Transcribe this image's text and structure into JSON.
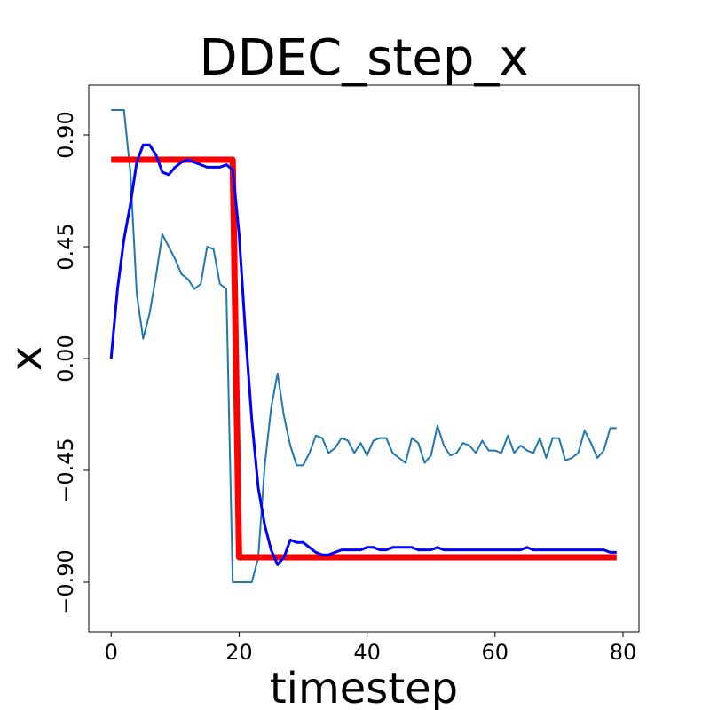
{
  "chart_data": {
    "type": "line",
    "title": "DDEC_step_x",
    "xlabel": "timestep",
    "ylabel": "x",
    "xlim": [
      -3.5,
      82.5
    ],
    "ylim": [
      -1.1,
      1.1
    ],
    "xticks": [
      0,
      20,
      40,
      60,
      80
    ],
    "yticks": [
      0.9,
      0.45,
      0.0,
      -0.45,
      -0.9
    ],
    "ytick_labels": [
      "0.90",
      "0.45",
      "0.00",
      "−0.45",
      "−0.90"
    ],
    "grid": false,
    "legend": "none",
    "series": [
      {
        "color": "#1f77b4",
        "width": 2,
        "points": [
          [
            0,
            1.0
          ],
          [
            1,
            1.0
          ],
          [
            2,
            1.0
          ],
          [
            3,
            0.75
          ],
          [
            4,
            0.26
          ],
          [
            5,
            0.08
          ],
          [
            6,
            0.18
          ],
          [
            7,
            0.33
          ],
          [
            8,
            0.5
          ],
          [
            9,
            0.45
          ],
          [
            10,
            0.4
          ],
          [
            11,
            0.34
          ],
          [
            12,
            0.32
          ],
          [
            13,
            0.28
          ],
          [
            14,
            0.3
          ],
          [
            15,
            0.45
          ],
          [
            16,
            0.44
          ],
          [
            17,
            0.3
          ],
          [
            18,
            0.28
          ],
          [
            19,
            -0.9
          ],
          [
            20,
            -0.9
          ],
          [
            21,
            -0.9
          ],
          [
            22,
            -0.9
          ],
          [
            23,
            -0.8
          ],
          [
            24,
            -0.43
          ],
          [
            25,
            -0.2
          ],
          [
            26,
            -0.06
          ],
          [
            27,
            -0.23
          ],
          [
            28,
            -0.35
          ],
          [
            29,
            -0.43
          ],
          [
            30,
            -0.43
          ],
          [
            31,
            -0.38
          ],
          [
            32,
            -0.31
          ],
          [
            33,
            -0.32
          ],
          [
            34,
            -0.38
          ],
          [
            35,
            -0.36
          ],
          [
            36,
            -0.32
          ],
          [
            37,
            -0.33
          ],
          [
            38,
            -0.38
          ],
          [
            39,
            -0.34
          ],
          [
            40,
            -0.39
          ],
          [
            41,
            -0.33
          ],
          [
            42,
            -0.32
          ],
          [
            43,
            -0.32
          ],
          [
            44,
            -0.38
          ],
          [
            45,
            -0.4
          ],
          [
            46,
            -0.42
          ],
          [
            47,
            -0.32
          ],
          [
            48,
            -0.34
          ],
          [
            49,
            -0.42
          ],
          [
            50,
            -0.39
          ],
          [
            51,
            -0.27
          ],
          [
            52,
            -0.35
          ],
          [
            53,
            -0.39
          ],
          [
            54,
            -0.38
          ],
          [
            55,
            -0.34
          ],
          [
            56,
            -0.35
          ],
          [
            57,
            -0.38
          ],
          [
            58,
            -0.33
          ],
          [
            59,
            -0.37
          ],
          [
            60,
            -0.37
          ],
          [
            61,
            -0.38
          ],
          [
            62,
            -0.31
          ],
          [
            63,
            -0.38
          ],
          [
            64,
            -0.35
          ],
          [
            65,
            -0.37
          ],
          [
            66,
            -0.38
          ],
          [
            67,
            -0.32
          ],
          [
            68,
            -0.4
          ],
          [
            69,
            -0.32
          ],
          [
            70,
            -0.32
          ],
          [
            71,
            -0.41
          ],
          [
            72,
            -0.4
          ],
          [
            73,
            -0.38
          ],
          [
            74,
            -0.29
          ],
          [
            75,
            -0.34
          ],
          [
            76,
            -0.4
          ],
          [
            77,
            -0.37
          ],
          [
            78,
            -0.28
          ],
          [
            79,
            -0.28
          ]
        ]
      },
      {
        "color": "#ff0000",
        "width": 7,
        "points": [
          [
            0,
            0.8
          ],
          [
            19,
            0.8
          ],
          [
            20,
            -0.8
          ],
          [
            79,
            -0.8
          ]
        ]
      },
      {
        "color": "#0000ff",
        "width": 3,
        "points": [
          [
            0,
            0.0
          ],
          [
            1,
            0.28
          ],
          [
            2,
            0.48
          ],
          [
            3,
            0.62
          ],
          [
            4,
            0.79
          ],
          [
            5,
            0.86
          ],
          [
            6,
            0.86
          ],
          [
            7,
            0.82
          ],
          [
            8,
            0.75
          ],
          [
            9,
            0.74
          ],
          [
            10,
            0.77
          ],
          [
            11,
            0.79
          ],
          [
            12,
            0.8
          ],
          [
            13,
            0.79
          ],
          [
            14,
            0.78
          ],
          [
            15,
            0.77
          ],
          [
            16,
            0.77
          ],
          [
            17,
            0.77
          ],
          [
            18,
            0.78
          ],
          [
            19,
            0.76
          ],
          [
            20,
            0.5
          ],
          [
            21,
            0.1
          ],
          [
            22,
            -0.25
          ],
          [
            23,
            -0.52
          ],
          [
            24,
            -0.67
          ],
          [
            25,
            -0.77
          ],
          [
            26,
            -0.83
          ],
          [
            27,
            -0.8
          ],
          [
            28,
            -0.73
          ],
          [
            29,
            -0.74
          ],
          [
            30,
            -0.74
          ],
          [
            31,
            -0.76
          ],
          [
            32,
            -0.78
          ],
          [
            33,
            -0.79
          ],
          [
            34,
            -0.79
          ],
          [
            35,
            -0.78
          ],
          [
            36,
            -0.77
          ],
          [
            37,
            -0.77
          ],
          [
            38,
            -0.77
          ],
          [
            39,
            -0.77
          ],
          [
            40,
            -0.76
          ],
          [
            41,
            -0.76
          ],
          [
            42,
            -0.77
          ],
          [
            43,
            -0.77
          ],
          [
            44,
            -0.76
          ],
          [
            45,
            -0.76
          ],
          [
            46,
            -0.76
          ],
          [
            47,
            -0.76
          ],
          [
            48,
            -0.77
          ],
          [
            49,
            -0.77
          ],
          [
            50,
            -0.77
          ],
          [
            51,
            -0.76
          ],
          [
            52,
            -0.77
          ],
          [
            53,
            -0.77
          ],
          [
            54,
            -0.77
          ],
          [
            55,
            -0.77
          ],
          [
            56,
            -0.77
          ],
          [
            57,
            -0.77
          ],
          [
            58,
            -0.77
          ],
          [
            59,
            -0.77
          ],
          [
            60,
            -0.77
          ],
          [
            61,
            -0.77
          ],
          [
            62,
            -0.77
          ],
          [
            63,
            -0.77
          ],
          [
            64,
            -0.77
          ],
          [
            65,
            -0.76
          ],
          [
            66,
            -0.77
          ],
          [
            67,
            -0.77
          ],
          [
            68,
            -0.77
          ],
          [
            69,
            -0.77
          ],
          [
            70,
            -0.77
          ],
          [
            71,
            -0.77
          ],
          [
            72,
            -0.77
          ],
          [
            73,
            -0.77
          ],
          [
            74,
            -0.77
          ],
          [
            75,
            -0.77
          ],
          [
            76,
            -0.77
          ],
          [
            77,
            -0.77
          ],
          [
            78,
            -0.78
          ],
          [
            79,
            -0.78
          ]
        ]
      }
    ]
  }
}
